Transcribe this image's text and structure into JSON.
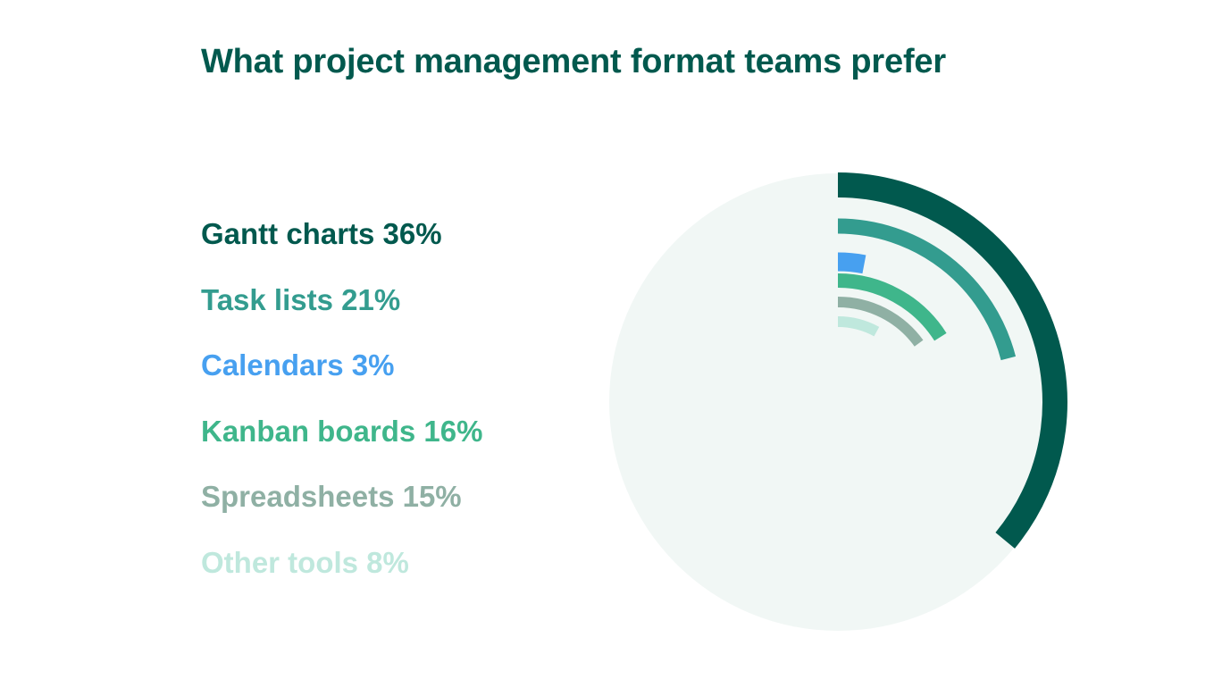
{
  "title": "What project management format teams prefer",
  "chart_data": {
    "type": "radial-bar",
    "title": "What project management format teams prefer",
    "max_value": 100,
    "unit": "%",
    "background_color": "#f1f7f5",
    "series": [
      {
        "name": "Gantt charts",
        "value": 36,
        "label": "Gantt charts 36%",
        "color": "#01594e"
      },
      {
        "name": "Task lists",
        "value": 21,
        "label": "Task lists 21%",
        "color": "#339c8f"
      },
      {
        "name": "Calendars",
        "value": 3,
        "label": "Calendars 3%",
        "color": "#47a0f0"
      },
      {
        "name": "Kanban boards",
        "value": 16,
        "label": "Kanban boards 16%",
        "color": "#3fb68b"
      },
      {
        "name": "Spreadsheets",
        "value": 15,
        "label": "Spreadsheets 15%",
        "color": "#8fb0a4"
      },
      {
        "name": "Other tools",
        "value": 8,
        "label": "Other tools 8%",
        "color": "#bfe8dd"
      }
    ]
  }
}
